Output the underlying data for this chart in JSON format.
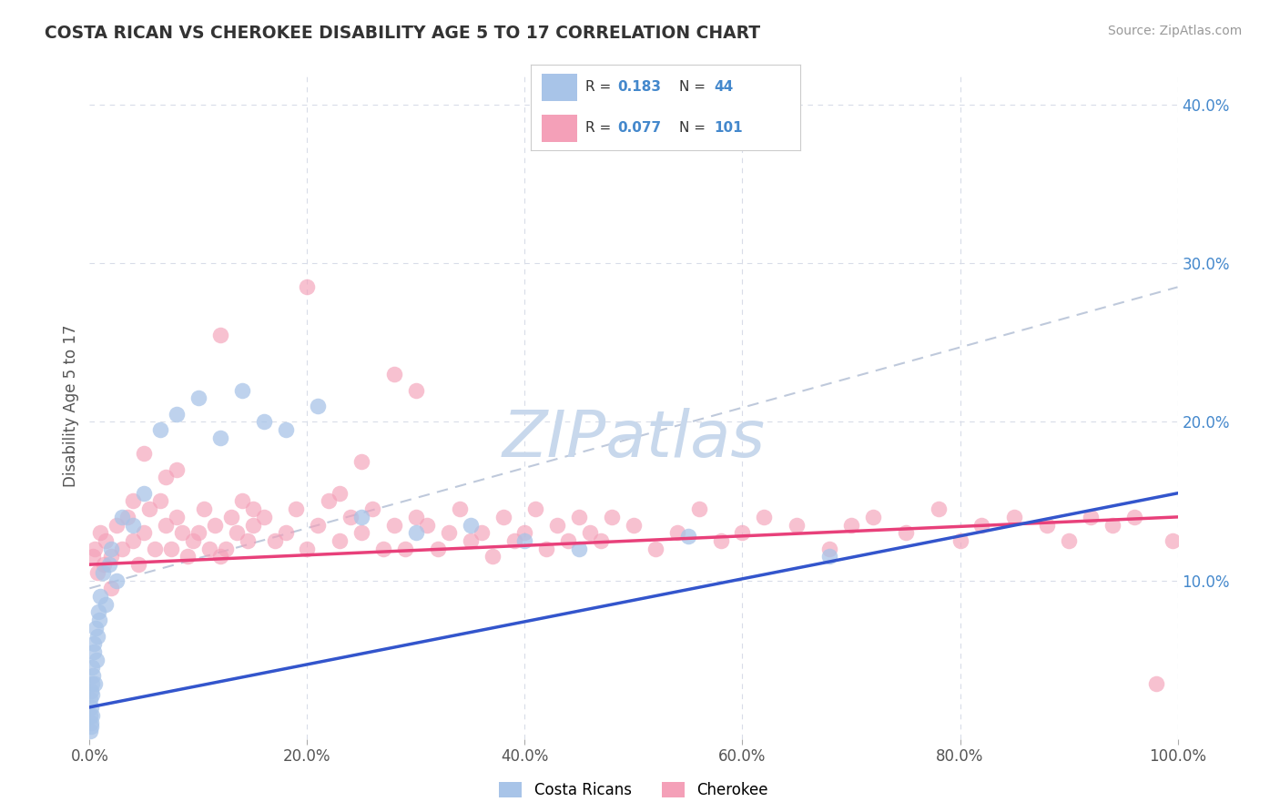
{
  "title": "COSTA RICAN VS CHEROKEE DISABILITY AGE 5 TO 17 CORRELATION CHART",
  "source": "Source: ZipAtlas.com",
  "ylabel": "Disability Age 5 to 17",
  "xlim": [
    0,
    100
  ],
  "ylim": [
    0,
    42
  ],
  "xticklabels": [
    "0.0%",
    "20.0%",
    "40.0%",
    "60.0%",
    "80.0%",
    "100.0%"
  ],
  "yticklabels_right": [
    "",
    "10.0%",
    "20.0%",
    "30.0%",
    "40.0%"
  ],
  "color_costa": "#a8c4e8",
  "color_cherokee": "#f4a0b8",
  "color_trend_costa": "#3355cc",
  "color_trend_cherokee": "#e8407a",
  "color_dashed": "#b8c4d8",
  "background_color": "#ffffff",
  "grid_color": "#d8dce8",
  "watermark_color": "#c8d8ec",
  "cr_trend_x0": 0,
  "cr_trend_y0": 2.0,
  "cr_trend_x1": 100,
  "cr_trend_y1": 15.5,
  "ch_trend_x0": 0,
  "ch_trend_y0": 11.0,
  "ch_trend_x1": 100,
  "ch_trend_y1": 14.0,
  "dash_x0": 0,
  "dash_y0": 9.5,
  "dash_x1": 100,
  "dash_y1": 28.5,
  "costa_ricans_x": [
    0.05,
    0.07,
    0.08,
    0.1,
    0.12,
    0.13,
    0.15,
    0.18,
    0.2,
    0.22,
    0.25,
    0.3,
    0.35,
    0.4,
    0.5,
    0.55,
    0.6,
    0.7,
    0.8,
    0.9,
    1.0,
    1.2,
    1.5,
    1.8,
    2.0,
    2.5,
    3.0,
    4.0,
    5.0,
    6.5,
    8.0,
    10.0,
    12.0,
    14.0,
    16.0,
    18.0,
    21.0,
    25.0,
    30.0,
    35.0,
    40.0,
    45.0,
    55.0,
    68.0
  ],
  "costa_ricans_y": [
    1.5,
    2.5,
    0.5,
    1.0,
    3.0,
    2.0,
    0.8,
    1.5,
    4.5,
    3.5,
    2.8,
    4.0,
    5.5,
    6.0,
    3.5,
    7.0,
    5.0,
    6.5,
    8.0,
    7.5,
    9.0,
    10.5,
    8.5,
    11.0,
    12.0,
    10.0,
    14.0,
    13.5,
    15.5,
    19.5,
    20.5,
    21.5,
    19.0,
    22.0,
    20.0,
    19.5,
    21.0,
    14.0,
    13.0,
    13.5,
    12.5,
    12.0,
    12.8,
    11.5
  ],
  "cherokee_x": [
    0.3,
    0.5,
    0.7,
    1.0,
    1.3,
    1.5,
    2.0,
    2.5,
    3.0,
    3.5,
    4.0,
    4.5,
    5.0,
    5.5,
    6.0,
    6.5,
    7.0,
    7.5,
    8.0,
    8.5,
    9.0,
    9.5,
    10.0,
    10.5,
    11.0,
    11.5,
    12.0,
    12.5,
    13.0,
    13.5,
    14.0,
    14.5,
    15.0,
    16.0,
    17.0,
    18.0,
    19.0,
    20.0,
    21.0,
    22.0,
    23.0,
    24.0,
    25.0,
    26.0,
    27.0,
    28.0,
    29.0,
    30.0,
    31.0,
    32.0,
    33.0,
    34.0,
    35.0,
    36.0,
    37.0,
    38.0,
    39.0,
    40.0,
    41.0,
    42.0,
    43.0,
    44.0,
    45.0,
    46.0,
    47.0,
    48.0,
    50.0,
    52.0,
    54.0,
    56.0,
    58.0,
    60.0,
    62.0,
    65.0,
    68.0,
    70.0,
    72.0,
    75.0,
    78.0,
    80.0,
    82.0,
    85.0,
    88.0,
    90.0,
    92.0,
    94.0,
    96.0,
    98.0,
    99.5,
    5.0,
    8.0,
    12.0,
    20.0,
    23.0,
    28.0,
    30.0,
    2.0,
    4.0,
    7.0,
    15.0,
    25.0
  ],
  "cherokee_y": [
    11.5,
    12.0,
    10.5,
    13.0,
    11.0,
    12.5,
    11.5,
    13.5,
    12.0,
    14.0,
    12.5,
    11.0,
    13.0,
    14.5,
    12.0,
    15.0,
    13.5,
    12.0,
    14.0,
    13.0,
    11.5,
    12.5,
    13.0,
    14.5,
    12.0,
    13.5,
    11.5,
    12.0,
    14.0,
    13.0,
    15.0,
    12.5,
    13.5,
    14.0,
    12.5,
    13.0,
    14.5,
    12.0,
    13.5,
    15.0,
    12.5,
    14.0,
    13.0,
    14.5,
    12.0,
    13.5,
    12.0,
    14.0,
    13.5,
    12.0,
    13.0,
    14.5,
    12.5,
    13.0,
    11.5,
    14.0,
    12.5,
    13.0,
    14.5,
    12.0,
    13.5,
    12.5,
    14.0,
    13.0,
    12.5,
    14.0,
    13.5,
    12.0,
    13.0,
    14.5,
    12.5,
    13.0,
    14.0,
    13.5,
    12.0,
    13.5,
    14.0,
    13.0,
    14.5,
    12.5,
    13.5,
    14.0,
    13.5,
    12.5,
    14.0,
    13.5,
    14.0,
    3.5,
    12.5,
    18.0,
    17.0,
    25.5,
    28.5,
    15.5,
    23.0,
    22.0,
    9.5,
    15.0,
    16.5,
    14.5,
    17.5
  ]
}
